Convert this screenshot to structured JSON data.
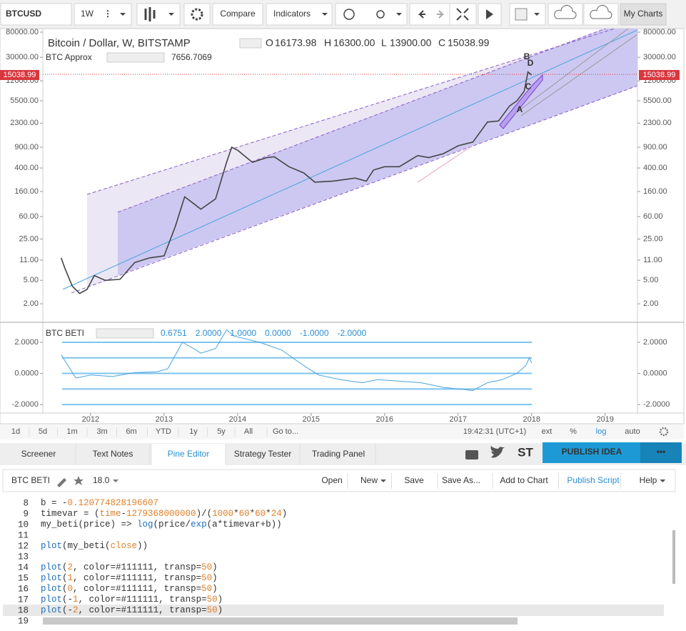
{
  "toolbar": {
    "symbol": "BTCUSD",
    "interval": "1W",
    "compare": "Compare",
    "indicators": "Indicators",
    "my_charts": "My Charts"
  },
  "legend": {
    "title": "Bitcoin / Dollar, W, BITSTAMP",
    "o_label": "O",
    "o": "16173.98",
    "h_label": "H",
    "h": "16300.00",
    "l_label": "L",
    "l": "13900.00",
    "c_label": "C",
    "c": "15038.99",
    "approx_name": "BTC Approx",
    "approx_value": "7656.7069"
  },
  "pattern_labels": [
    "B",
    "D",
    "C",
    "A"
  ],
  "chart_data": [
    {
      "type": "line",
      "log_scale": true,
      "color": "#444444",
      "x": [
        2011.6,
        2011.65,
        2011.75,
        2011.85,
        2011.95,
        2012.05,
        2012.2,
        2012.4,
        2012.6,
        2012.8,
        2013.0,
        2013.15,
        2013.28,
        2013.4,
        2013.5,
        2013.7,
        2013.85,
        2013.92,
        2014.0,
        2014.2,
        2014.4,
        2014.5,
        2014.7,
        2014.9,
        2015.05,
        2015.3,
        2015.6,
        2015.75,
        2015.85,
        2016.0,
        2016.2,
        2016.45,
        2016.6,
        2016.8,
        2017.0,
        2017.2,
        2017.4,
        2017.55,
        2017.7,
        2017.8,
        2017.9,
        2017.95,
        2018.0
      ],
      "values": [
        12,
        8,
        4,
        3,
        3.5,
        6,
        5,
        5.2,
        10,
        12,
        13,
        40,
        130,
        100,
        80,
        120,
        500,
        900,
        800,
        500,
        600,
        620,
        420,
        330,
        230,
        240,
        270,
        240,
        370,
        420,
        420,
        650,
        600,
        700,
        950,
        1100,
        2400,
        2500,
        4500,
        5500,
        8000,
        17000,
        15038.99
      ],
      "xlim": [
        2011.35,
        2019.44
      ],
      "xticks": [
        2012,
        2013,
        2014,
        2015,
        2016,
        2017,
        2018,
        2019
      ],
      "ylim": [
        1,
        92000
      ],
      "yticks": [
        {
          "value": 80000,
          "label": "80000.00"
        },
        {
          "value": 30000,
          "label": "30000.00"
        },
        {
          "value": 12000,
          "label": "12000.00"
        },
        {
          "value": 5500,
          "label": "5500.00"
        },
        {
          "value": 2300,
          "label": "2300.00"
        },
        {
          "value": 900,
          "label": "900.00"
        },
        {
          "value": 400,
          "label": "400.00"
        },
        {
          "value": 160,
          "label": "160.00"
        },
        {
          "value": 60,
          "label": "60.00"
        },
        {
          "value": 25,
          "label": "25.00"
        },
        {
          "value": 11,
          "label": "11.00"
        },
        {
          "value": 5,
          "label": "5.00"
        },
        {
          "value": 2,
          "label": "2.00"
        }
      ],
      "last_price": {
        "value": 15038.99,
        "label": "15038.99"
      }
    },
    {
      "type": "line",
      "title": "BTC BETI",
      "color": "#4aa3df",
      "legend_values": [
        "0.6751",
        "2.0000",
        "1.0000",
        "0.0000",
        "-1.0000",
        "-2.0000"
      ],
      "x": [
        2011.6,
        2011.8,
        2012.0,
        2012.3,
        2012.6,
        2012.9,
        2013.05,
        2013.25,
        2013.4,
        2013.5,
        2013.7,
        2013.85,
        2013.95,
        2014.3,
        2014.6,
        2014.9,
        2015.1,
        2015.4,
        2015.7,
        2015.9,
        2016.2,
        2016.5,
        2016.8,
        2017.0,
        2017.2,
        2017.4,
        2017.6,
        2017.8,
        2017.92,
        2017.97,
        2018.0
      ],
      "values": [
        1.2,
        -0.3,
        -0.1,
        -0.2,
        0.05,
        0.1,
        0.3,
        2.0,
        1.6,
        1.3,
        1.6,
        2.8,
        2.4,
        2.0,
        1.5,
        0.5,
        -0.1,
        -0.4,
        -0.6,
        -0.4,
        -0.5,
        -0.6,
        -0.9,
        -1.0,
        -1.1,
        -0.6,
        -0.4,
        0.0,
        0.5,
        1.0,
        0.6751
      ],
      "levels": [
        2,
        1,
        0,
        -1,
        -2
      ],
      "xlim": [
        2011.35,
        2019.44
      ],
      "ylim": [
        -2.5,
        3.1
      ],
      "yticks": [
        {
          "value": 2,
          "label": "2.0000"
        },
        {
          "value": 0,
          "label": "0.0000"
        },
        {
          "value": -2,
          "label": "-2.0000"
        }
      ]
    }
  ],
  "time_bar": {
    "ranges": [
      "1d",
      "5d",
      "1m",
      "3m",
      "6m",
      "YTD",
      "1y",
      "5y",
      "All",
      "Go to..."
    ],
    "clock": "19:42:31 (UTC+1)",
    "options": [
      "ext",
      "%",
      "log",
      "auto"
    ]
  },
  "tabs": [
    "Screener",
    "Text Notes",
    "Pine Editor",
    "Strategy Tester",
    "Trading Panel"
  ],
  "st_label": "ST",
  "publish_idea": "PUBLISH IDEA",
  "more": "•••",
  "editor": {
    "script_name": "BTC BETI",
    "version": "18.0",
    "menu": [
      "Open",
      "New",
      "Save",
      "Save As...",
      "Add to Chart",
      "Publish Script",
      "Help"
    ]
  },
  "code_lines": [
    {
      "number": 8,
      "text": "b = -0.120774828196607"
    },
    {
      "number": 9,
      "text": "timevar = (time-1279368000000)/(1000*60*60*24)"
    },
    {
      "number": 10,
      "text": "my_beti(price) => log(price/exp(a*timevar+b))"
    },
    {
      "number": 11
    },
    {
      "number": 12,
      "text": "plot(my_beti(close))"
    },
    {
      "number": 13
    },
    {
      "number": 14,
      "text": "plot(2, color=#111111, transp=50)"
    },
    {
      "number": 15,
      "text": "plot(1, color=#111111, transp=50)"
    },
    {
      "number": 16,
      "text": "plot(0, color=#111111, transp=50)"
    },
    {
      "number": 17,
      "text": "plot(-1, color=#111111, transp=50)"
    },
    {
      "number": 18,
      "text": "plot(-2, color=#111111, transp=50)"
    },
    {
      "number": 19
    }
  ]
}
